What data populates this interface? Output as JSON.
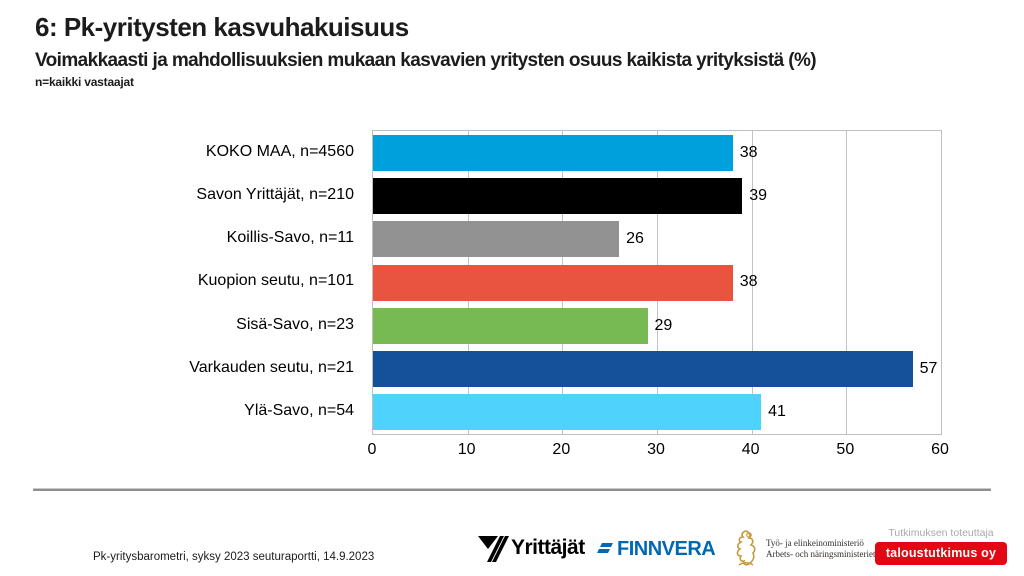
{
  "header": {
    "title": "6: Pk-yritysten kasvuhakuisuus",
    "subtitle": "Voimakkaasti ja mahdollisuuksien mukaan kasvavien yritysten osuus kaikista yrityksistä (%)",
    "note": "n=kaikki vastaajat"
  },
  "chart_data": {
    "type": "bar",
    "orientation": "horizontal",
    "categories": [
      "KOKO MAA, n=4560",
      "Savon Yrittäjät, n=210",
      "Koillis-Savo, n=11",
      "Kuopion seutu, n=101",
      "Sisä-Savo, n=23",
      "Varkauden seutu, n=21",
      "Ylä-Savo, n=54"
    ],
    "values": [
      38,
      39,
      26,
      38,
      29,
      57,
      41
    ],
    "bar_colors": [
      "#00a0dc",
      "#000000",
      "#929292",
      "#e8543f",
      "#77b952",
      "#15509b",
      "#4fd2fc"
    ],
    "title": "",
    "xlabel": "",
    "ylabel": "",
    "xlim": [
      0,
      60
    ],
    "x_ticks": [
      0,
      10,
      20,
      30,
      40,
      50,
      60
    ],
    "grid": "vertical",
    "gridline_color": "#c3c3c3",
    "value_label_position": "outside-end",
    "legend": "none"
  },
  "footer": {
    "source": "Pk-yritysbarometri,  syksy 2023 seuturaportti,  14.9.2023",
    "logos": {
      "yrittajat_label": "Yrittäjät",
      "finnvera_label": "FINNVERA",
      "ministry_line1": "Työ- ja elinkeinoministeriö",
      "ministry_line2": "Arbets- och näringsministeriet",
      "research_caption": "Tutkimuksen toteuttaja",
      "research_badge": "taloustutkimus oy"
    }
  },
  "colors": {
    "title_text": "#1c1c1c",
    "divider": "#8f8f8f",
    "finnvera_blue": "#0069b4",
    "ministry_gold": "#c49a3c",
    "research_red": "#e30613"
  }
}
